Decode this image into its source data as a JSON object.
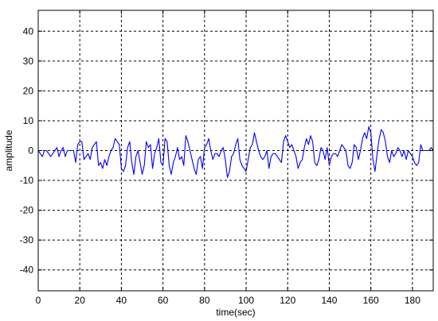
{
  "chart_data": {
    "type": "line",
    "title": "",
    "xlabel": "time(sec)",
    "ylabel": "amplitude",
    "xlim": [
      0,
      190
    ],
    "ylim": [
      -47,
      47
    ],
    "x_ticks": [
      0,
      20,
      40,
      60,
      80,
      100,
      120,
      140,
      160,
      180
    ],
    "y_ticks": [
      -40,
      -30,
      -20,
      -10,
      0,
      10,
      20,
      30,
      40
    ],
    "grid": true,
    "legend": "none",
    "line_color": "#0000ff",
    "series": [
      {
        "x": [
          0,
          1,
          2,
          3,
          4,
          5,
          6,
          7,
          8,
          9,
          10,
          11,
          12,
          13,
          14,
          15,
          16,
          17,
          18,
          19,
          20,
          21,
          22,
          23,
          24,
          25,
          26,
          27,
          28,
          29,
          30,
          31,
          32,
          33,
          34,
          35,
          36,
          37,
          38,
          39,
          40,
          41,
          42,
          43,
          44,
          45,
          46,
          47,
          48,
          49,
          50,
          51,
          52,
          53,
          54,
          55,
          56,
          57,
          58,
          59,
          60,
          61,
          62,
          63,
          64,
          65,
          66,
          67,
          68,
          69,
          70,
          71,
          72,
          73,
          74,
          75,
          76,
          77,
          78,
          79,
          80,
          81,
          82,
          83,
          84,
          85,
          86,
          87,
          88,
          89,
          90,
          91,
          92,
          93,
          94,
          95,
          96,
          97,
          98,
          99,
          100,
          101,
          102,
          103,
          104,
          105,
          106,
          107,
          108,
          109,
          110,
          111,
          112,
          113,
          114,
          115,
          116,
          117,
          118,
          119,
          120,
          121,
          122,
          123,
          124,
          125,
          126,
          127,
          128,
          129,
          130,
          131,
          132,
          133,
          134,
          135,
          136,
          137,
          138,
          139,
          140,
          141,
          142,
          143,
          144,
          145,
          146,
          147,
          148,
          149,
          150,
          151,
          152,
          153,
          154,
          155,
          156,
          157,
          158,
          159,
          160,
          161,
          162,
          163,
          164,
          165,
          166,
          167,
          168,
          169,
          170,
          171,
          172,
          173,
          174,
          175,
          176,
          177,
          178,
          179,
          180,
          181,
          182,
          183,
          184,
          185,
          186,
          187,
          188,
          189,
          190
        ],
        "y": [
          0,
          -1,
          -2,
          0,
          0,
          -1,
          -2,
          -1,
          0,
          1,
          -2,
          0,
          1,
          -2,
          0,
          0,
          0,
          0,
          -4,
          2,
          3,
          3,
          -3,
          -2,
          -1,
          -3,
          1,
          2,
          3,
          -5,
          -4,
          -6,
          -3,
          -5,
          -2,
          0,
          1,
          4,
          3,
          2,
          -6,
          -7,
          -5,
          1,
          3,
          -4,
          -8,
          -2,
          0,
          -4,
          -8,
          -5,
          3,
          1,
          2,
          -6,
          -1,
          1,
          4,
          -4,
          -5,
          4,
          3,
          -5,
          -8,
          -4,
          -2,
          1,
          -3,
          -2,
          -5,
          5,
          3,
          0,
          -3,
          -6,
          -8,
          -3,
          -2,
          -6,
          1,
          2,
          4,
          0,
          -3,
          -1,
          -1,
          -2,
          0,
          1,
          -3,
          -9,
          -7,
          -2,
          -1,
          2,
          4,
          -3,
          -5,
          -6,
          -7,
          -3,
          1,
          2,
          6,
          3,
          0,
          -2,
          -3,
          -2,
          0,
          -6,
          -2,
          -1,
          -1,
          -2,
          -3,
          -4,
          3,
          5,
          3,
          1,
          2,
          0,
          -2,
          -6,
          -4,
          -3,
          1,
          4,
          2,
          5,
          3,
          -4,
          -5,
          -3,
          1,
          0,
          -3,
          1,
          -5,
          -2,
          -1,
          -1,
          -2,
          0,
          2,
          1,
          0,
          -5,
          -6,
          -4,
          2,
          1,
          -3,
          0,
          4,
          6,
          4,
          8,
          6,
          -3,
          -7,
          -1,
          4,
          7,
          6,
          3,
          -2,
          -4,
          0,
          -2,
          -1,
          1,
          0,
          -2,
          0,
          -3,
          0,
          -1,
          -2,
          -4,
          -5,
          -4,
          2,
          0,
          0,
          0,
          0,
          1,
          0
        ]
      }
    ]
  }
}
